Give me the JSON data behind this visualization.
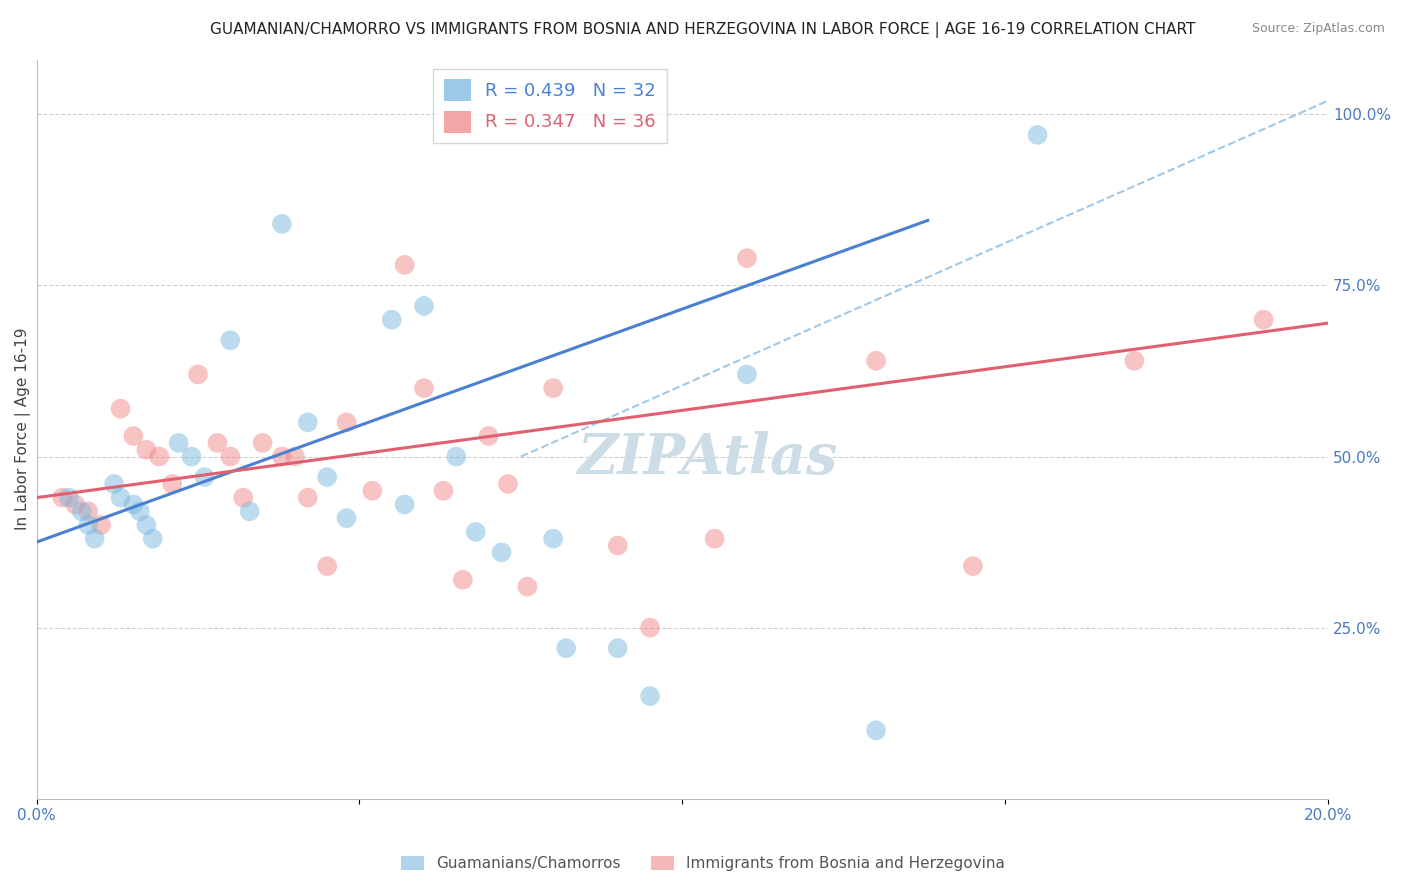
{
  "title": "GUAMANIAN/CHAMORRO VS IMMIGRANTS FROM BOSNIA AND HERZEGOVINA IN LABOR FORCE | AGE 16-19 CORRELATION CHART",
  "source": "Source: ZipAtlas.com",
  "ylabel": "In Labor Force | Age 16-19",
  "xlim": [
    0.0,
    0.2
  ],
  "ylim": [
    0.0,
    1.08
  ],
  "xtick_pos": [
    0.0,
    0.05,
    0.1,
    0.15,
    0.2
  ],
  "xticklabels": [
    "0.0%",
    "",
    "",
    "",
    "20.0%"
  ],
  "yticks_right": [
    0.25,
    0.5,
    0.75,
    1.0
  ],
  "ytick_right_labels": [
    "25.0%",
    "50.0%",
    "75.0%",
    "100.0%"
  ],
  "R_blue": 0.439,
  "N_blue": 32,
  "R_pink": 0.347,
  "N_pink": 36,
  "blue_color": "#7ab8e0",
  "pink_color": "#f08888",
  "blue_line_color": "#4a80d0",
  "pink_line_color": "#e06070",
  "dashed_line_color": "#a0c8e8",
  "legend_blue_label": "Guamanians/Chamorros",
  "legend_pink_label": "Immigrants from Bosnia and Herzegovina",
  "watermark": "ZIPAtlas",
  "blue_scatter_x": [
    0.005,
    0.007,
    0.008,
    0.009,
    0.012,
    0.013,
    0.015,
    0.016,
    0.017,
    0.018,
    0.022,
    0.024,
    0.026,
    0.03,
    0.033,
    0.038,
    0.042,
    0.045,
    0.048,
    0.055,
    0.057,
    0.06,
    0.065,
    0.068,
    0.072,
    0.08,
    0.082,
    0.09,
    0.095,
    0.11,
    0.13,
    0.155
  ],
  "blue_scatter_y": [
    0.44,
    0.42,
    0.4,
    0.38,
    0.46,
    0.44,
    0.43,
    0.42,
    0.4,
    0.38,
    0.52,
    0.5,
    0.47,
    0.67,
    0.42,
    0.84,
    0.55,
    0.47,
    0.41,
    0.7,
    0.43,
    0.72,
    0.5,
    0.39,
    0.36,
    0.38,
    0.22,
    0.22,
    0.15,
    0.62,
    0.1,
    0.97
  ],
  "pink_scatter_x": [
    0.004,
    0.006,
    0.008,
    0.01,
    0.013,
    0.015,
    0.017,
    0.019,
    0.021,
    0.025,
    0.028,
    0.03,
    0.032,
    0.035,
    0.038,
    0.04,
    0.042,
    0.045,
    0.048,
    0.052,
    0.057,
    0.06,
    0.063,
    0.066,
    0.07,
    0.073,
    0.076,
    0.08,
    0.09,
    0.095,
    0.105,
    0.11,
    0.13,
    0.145,
    0.17,
    0.19
  ],
  "pink_scatter_y": [
    0.44,
    0.43,
    0.42,
    0.4,
    0.57,
    0.53,
    0.51,
    0.5,
    0.46,
    0.62,
    0.52,
    0.5,
    0.44,
    0.52,
    0.5,
    0.5,
    0.44,
    0.34,
    0.55,
    0.45,
    0.78,
    0.6,
    0.45,
    0.32,
    0.53,
    0.46,
    0.31,
    0.6,
    0.37,
    0.25,
    0.38,
    0.79,
    0.64,
    0.34,
    0.64,
    0.7
  ],
  "blue_line_x0": 0.0,
  "blue_line_x1": 0.138,
  "blue_line_y0": 0.375,
  "blue_line_y1": 0.845,
  "pink_line_x0": 0.0,
  "pink_line_x1": 0.2,
  "pink_line_y0": 0.44,
  "pink_line_y1": 0.695,
  "dashed_line_x0": 0.075,
  "dashed_line_x1": 0.2,
  "dashed_line_y0": 0.5,
  "dashed_line_y1": 1.02,
  "title_fontsize": 11,
  "axis_label_fontsize": 11,
  "tick_fontsize": 11,
  "legend_fontsize": 13,
  "watermark_fontsize": 40,
  "watermark_color": "#ccdde8",
  "background_color": "#ffffff",
  "grid_color": "#d0d0d0"
}
